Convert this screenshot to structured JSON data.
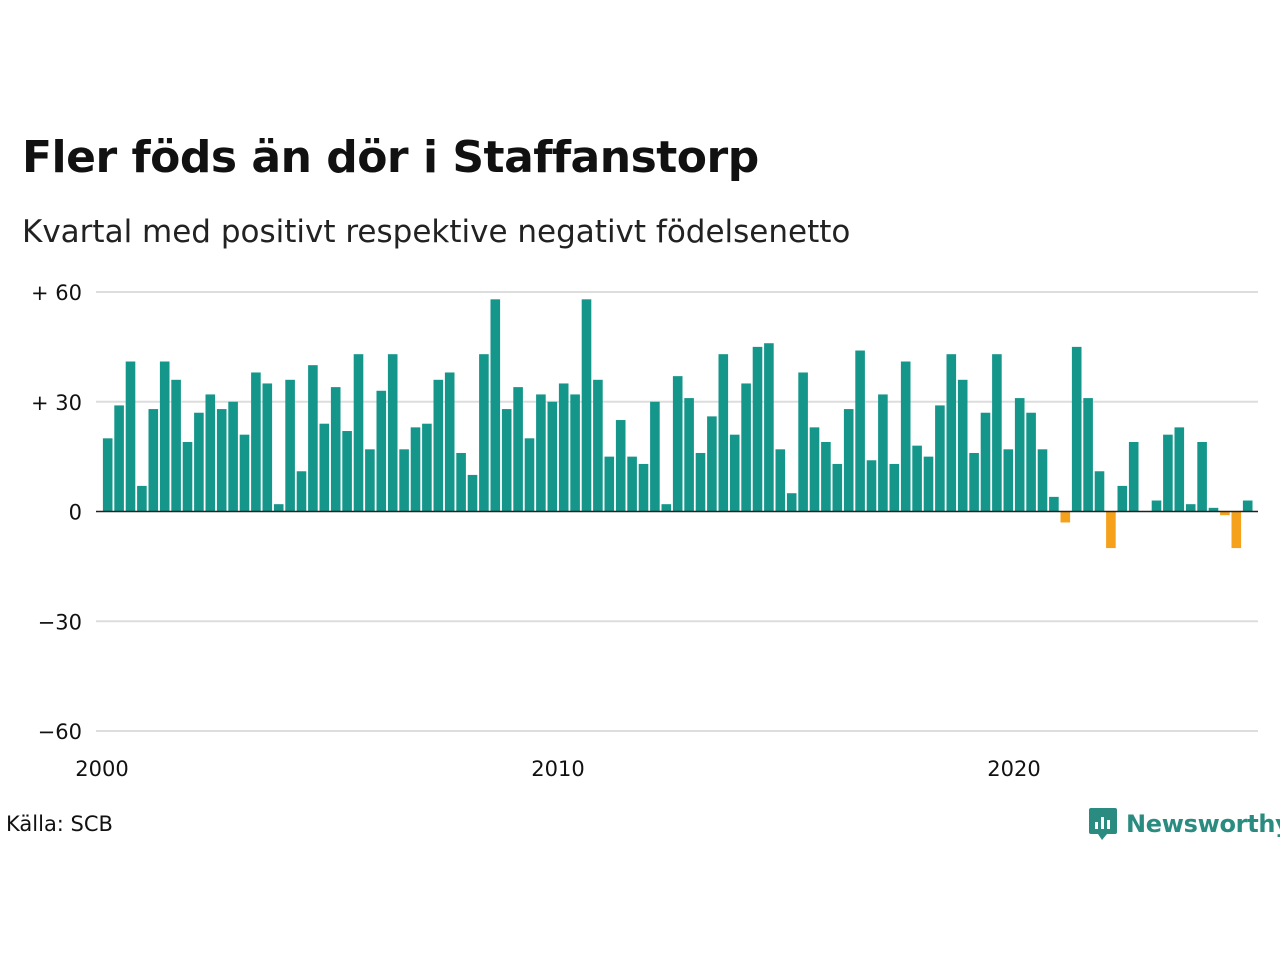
{
  "title": "Fler föds än dör i Staffanstorp",
  "subtitle": "Kvartal med positivt respektive negativt födelsenetto",
  "source": "Källa: SCB",
  "logo": {
    "text": "Newsworthy",
    "icon": "newsworthy-chart-bubble-icon"
  },
  "colors": {
    "positive": "#15968a",
    "negative": "#f5a11c",
    "grid": "#dddddd",
    "zero_line": "#222222",
    "brand": "#2a8c80"
  },
  "chart_data": {
    "type": "bar",
    "title": "Fler föds än dör i Staffanstorp",
    "subtitle": "Kvartal med positivt respektive negativt födelsenetto",
    "xlabel": "",
    "ylabel": "",
    "x_ticks": [
      "2000",
      "2010",
      "2020"
    ],
    "y_ticks": [
      {
        "value": 60,
        "label": "+ 60"
      },
      {
        "value": 30,
        "label": "+ 30"
      },
      {
        "value": 0,
        "label": "0"
      },
      {
        "value": -30,
        "label": "−30"
      },
      {
        "value": -60,
        "label": "−60"
      }
    ],
    "ylim": [
      -60,
      60
    ],
    "grid": "horizontal",
    "first_period": "2000 Q1",
    "values": [
      20,
      29,
      41,
      7,
      28,
      41,
      36,
      19,
      27,
      32,
      28,
      30,
      21,
      38,
      35,
      2,
      36,
      11,
      40,
      24,
      34,
      22,
      43,
      17,
      33,
      43,
      17,
      23,
      24,
      36,
      38,
      16,
      10,
      43,
      58,
      28,
      34,
      20,
      32,
      30,
      35,
      32,
      58,
      36,
      15,
      25,
      15,
      13,
      30,
      2,
      37,
      31,
      16,
      26,
      43,
      21,
      35,
      45,
      46,
      17,
      5,
      38,
      23,
      19,
      13,
      28,
      44,
      14,
      32,
      13,
      41,
      18,
      15,
      29,
      43,
      36,
      16,
      27,
      43,
      17,
      31,
      27,
      17,
      4,
      -3,
      45,
      31,
      11,
      -10,
      7,
      19,
      0,
      3,
      21,
      23,
      2,
      19,
      1,
      -1,
      -10,
      3
    ]
  }
}
